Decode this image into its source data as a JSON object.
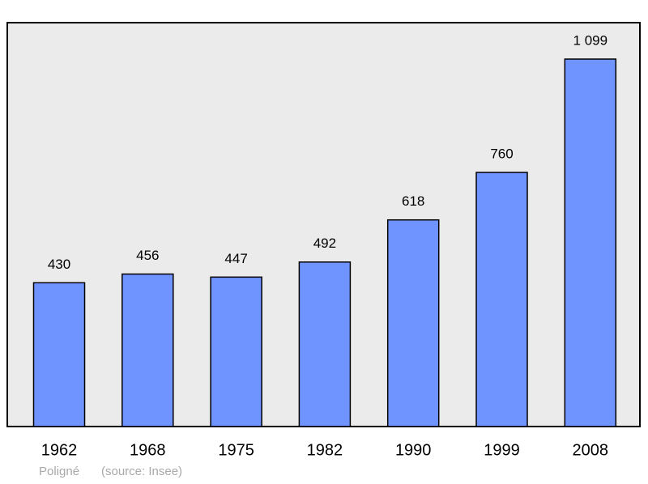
{
  "chart_data": {
    "type": "bar",
    "categories": [
      "1962",
      "1968",
      "1975",
      "1982",
      "1990",
      "1999",
      "2008"
    ],
    "values": [
      430,
      456,
      447,
      492,
      618,
      760,
      1099
    ],
    "value_labels": [
      "430",
      "456",
      "447",
      "492",
      "618",
      "760",
      "1 099"
    ],
    "color": "#7094ff",
    "caption": "Poligné",
    "source": "(source: Insee)"
  }
}
